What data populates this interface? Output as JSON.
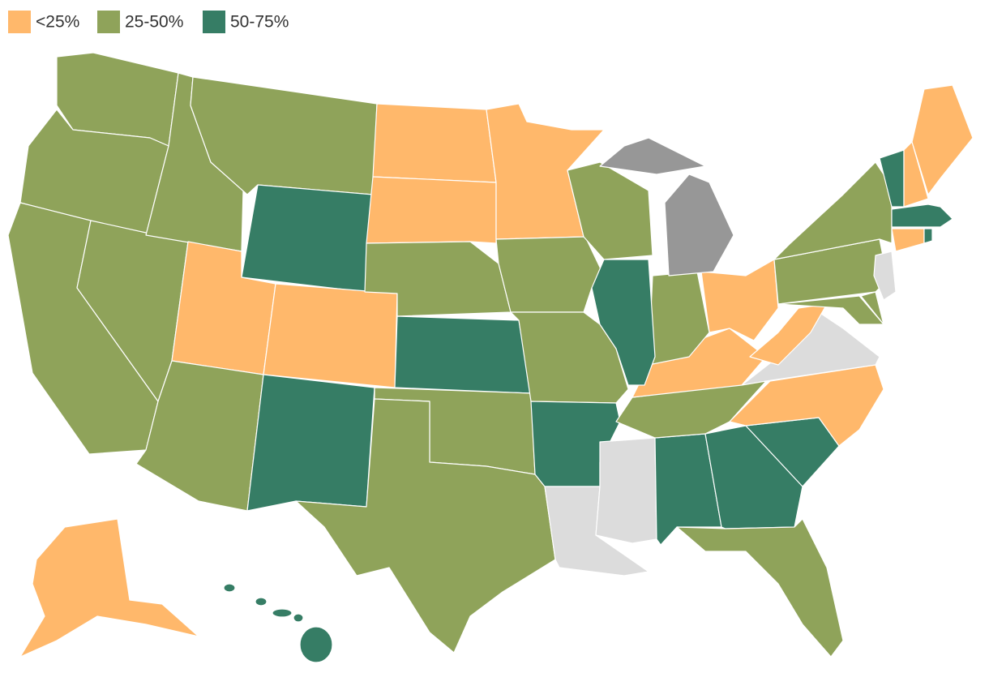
{
  "legend": [
    {
      "label": "<25%",
      "color": "#ffb86b"
    },
    {
      "label": "25-50%",
      "color": "#8fa35a"
    },
    {
      "label": "50-75%",
      "color": "#367d65"
    }
  ]
}
